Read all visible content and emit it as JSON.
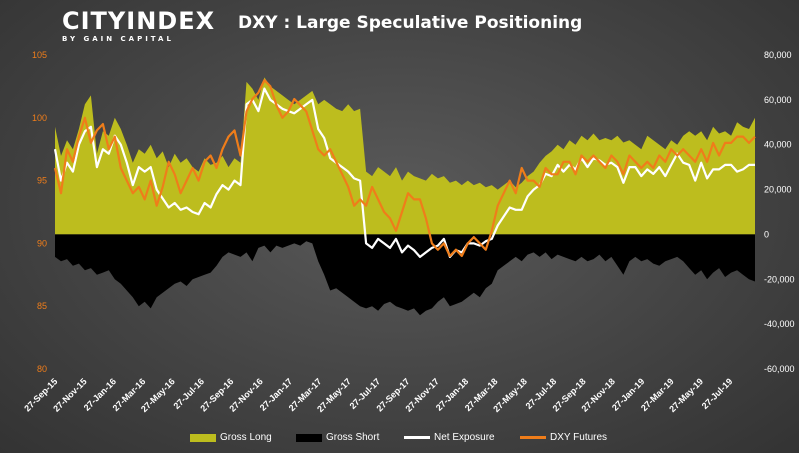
{
  "header": {
    "logo_main": "CITYINDEX",
    "logo_sub": "BY GAIN CAPITAL",
    "title": "DXY : Large Speculative Positioning"
  },
  "colors": {
    "gross_long": "#bdbd1e",
    "gross_short": "#000000",
    "net_exposure": "#ffffff",
    "dxy_futures": "#ef7d1a",
    "left_axis_text": "#ef7d1a",
    "right_axis_text": "#ffffff"
  },
  "chart_data": {
    "type": "area",
    "title": "DXY : Large Speculative Positioning",
    "x_tick_labels": [
      "27-Sep-15",
      "27-Nov-15",
      "27-Jan-16",
      "27-Mar-16",
      "27-May-16",
      "27-Jul-16",
      "27-Sep-16",
      "27-Nov-16",
      "27-Jan-17",
      "27-Mar-17",
      "27-May-17",
      "27-Jul-17",
      "27-Sep-17",
      "27-Nov-17",
      "27-Jan-18",
      "27-Mar-18",
      "27-May-18",
      "27-Jul-18",
      "27-Sep-18",
      "27-Nov-18",
      "27-Jan-19",
      "27-Mar-19",
      "27-May-19",
      "27-Jul-19"
    ],
    "left_axis": {
      "ticks": [
        "105",
        "100",
        "95",
        "90",
        "85",
        "80"
      ],
      "ylim": [
        80,
        105
      ]
    },
    "right_axis": {
      "ticks": [
        "80,000",
        "60,000",
        "40,000",
        "20,000",
        "0",
        "-20,000",
        "-40,000",
        "-60,000"
      ],
      "ylim": [
        -60000,
        80000
      ]
    },
    "grid": false,
    "legend_position": "bottom",
    "series": [
      {
        "name": "Gross Long",
        "axis": "right",
        "style": "area",
        "values": [
          48000,
          35000,
          42000,
          38000,
          47000,
          58000,
          62000,
          36000,
          46000,
          44000,
          52000,
          47000,
          40000,
          32000,
          38000,
          36000,
          40000,
          34000,
          37000,
          30000,
          36000,
          32000,
          34000,
          30000,
          28000,
          34000,
          31000,
          32000,
          35000,
          30000,
          34000,
          32000,
          68000,
          65000,
          60000,
          70000,
          66000,
          64000,
          62000,
          60000,
          58000,
          60000,
          62000,
          64000,
          58000,
          60000,
          58000,
          56000,
          55000,
          58000,
          55000,
          56000,
          28000,
          26000,
          30000,
          28000,
          26000,
          30000,
          24000,
          28000,
          26000,
          25000,
          24000,
          27000,
          25000,
          26000,
          23000,
          24000,
          22000,
          24000,
          22000,
          23000,
          21000,
          22000,
          20000,
          22000,
          24000,
          21000,
          23000,
          26000,
          28000,
          32000,
          35000,
          37000,
          40000,
          38000,
          42000,
          40000,
          44000,
          42000,
          45000,
          42000,
          43000,
          42000,
          44000,
          41000,
          42000,
          40000,
          38000,
          44000,
          42000,
          40000,
          38000,
          42000,
          40000,
          44000,
          46000,
          44000,
          46000,
          42000,
          48000,
          45000,
          46000,
          44000,
          50000,
          48000,
          47000,
          52000
        ]
      },
      {
        "name": "Gross Short",
        "axis": "right",
        "style": "area",
        "values": [
          -10000,
          -12000,
          -11000,
          -14000,
          -13000,
          -16000,
          -15000,
          -18000,
          -17000,
          -16000,
          -20000,
          -22000,
          -25000,
          -28000,
          -32000,
          -30000,
          -33000,
          -28000,
          -26000,
          -24000,
          -22000,
          -21000,
          -23000,
          -20000,
          -19000,
          -18000,
          -17000,
          -14000,
          -10000,
          -8000,
          -9000,
          -10000,
          -8000,
          -12000,
          -6000,
          -5000,
          -8000,
          -5000,
          -6000,
          -5000,
          -4000,
          -5000,
          -3000,
          -4000,
          -12000,
          -18000,
          -25000,
          -24000,
          -26000,
          -28000,
          -30000,
          -32000,
          -33000,
          -32000,
          -34000,
          -31000,
          -30000,
          -32000,
          -33000,
          -34000,
          -33000,
          -36000,
          -34000,
          -33000,
          -30000,
          -28000,
          -32000,
          -31000,
          -30000,
          -28000,
          -26000,
          -28000,
          -24000,
          -22000,
          -16000,
          -14000,
          -12000,
          -10000,
          -12000,
          -9000,
          -8000,
          -10000,
          -8000,
          -11000,
          -9000,
          -10000,
          -11000,
          -12000,
          -10000,
          -12000,
          -11000,
          -9000,
          -12000,
          -10000,
          -14000,
          -18000,
          -12000,
          -10000,
          -12000,
          -11000,
          -13000,
          -14000,
          -12000,
          -11000,
          -10000,
          -12000,
          -15000,
          -18000,
          -16000,
          -20000,
          -17000,
          -15000,
          -19000,
          -17000,
          -16000,
          -18000,
          -20000,
          -21000
        ]
      },
      {
        "name": "Net Exposure",
        "axis": "right",
        "style": "line",
        "values": [
          38000,
          24000,
          32000,
          28000,
          40000,
          46000,
          48000,
          30000,
          38000,
          36000,
          44000,
          40000,
          32000,
          22000,
          30000,
          28000,
          30000,
          20000,
          16000,
          12000,
          14000,
          11000,
          12000,
          10000,
          9000,
          14000,
          12000,
          18000,
          22000,
          20000,
          24000,
          22000,
          58000,
          60000,
          55000,
          65000,
          60000,
          58000,
          56000,
          55000,
          54000,
          56000,
          58000,
          60000,
          47000,
          43000,
          34000,
          32000,
          30000,
          28000,
          25000,
          24000,
          -4000,
          -6000,
          -2000,
          -4000,
          -6000,
          -2000,
          -8000,
          -5000,
          -7000,
          -10000,
          -8000,
          -6000,
          -5000,
          -2000,
          -10000,
          -7000,
          -8000,
          -4000,
          -4000,
          -5000,
          -3000,
          -2000,
          4000,
          8000,
          12000,
          11000,
          11000,
          17000,
          20000,
          22000,
          27000,
          26000,
          31000,
          28000,
          31000,
          29000,
          34000,
          30000,
          34000,
          33000,
          31000,
          32000,
          30000,
          23000,
          30000,
          30000,
          26000,
          29000,
          27000,
          30000,
          26000,
          31000,
          36000,
          32000,
          31000,
          24000,
          32000,
          25000,
          29000,
          29000,
          31000,
          31000,
          28000,
          29000,
          31000,
          31000
        ]
      },
      {
        "name": "DXY Futures",
        "axis": "left",
        "style": "line",
        "values": [
          96.0,
          94.0,
          97.5,
          96.5,
          98.5,
          100.0,
          98.0,
          99.0,
          99.5,
          97.5,
          98.5,
          96.0,
          95.0,
          94.0,
          94.5,
          93.5,
          95.0,
          93.0,
          94.5,
          96.5,
          95.5,
          94.0,
          95.0,
          96.0,
          95.0,
          96.5,
          97.0,
          96.0,
          97.5,
          98.5,
          99.0,
          97.0,
          100.5,
          101.5,
          102.0,
          103.0,
          102.5,
          101.0,
          100.0,
          100.5,
          101.5,
          101.0,
          100.5,
          99.0,
          97.5,
          97.0,
          97.5,
          96.5,
          95.5,
          94.5,
          93.0,
          93.5,
          93.0,
          94.5,
          93.5,
          92.5,
          92.0,
          91.0,
          92.5,
          94.0,
          93.5,
          93.5,
          92.0,
          90.0,
          89.5,
          90.0,
          89.0,
          89.5,
          89.0,
          90.0,
          90.5,
          90.0,
          89.5,
          91.0,
          93.0,
          94.0,
          95.0,
          94.0,
          96.0,
          95.0,
          95.0,
          94.5,
          96.0,
          95.5,
          95.5,
          96.5,
          96.5,
          95.5,
          97.0,
          96.5,
          97.0,
          96.5,
          96.0,
          97.0,
          96.5,
          95.5,
          97.0,
          96.5,
          96.0,
          96.5,
          96.0,
          97.0,
          96.5,
          97.5,
          97.0,
          97.5,
          97.0,
          96.5,
          97.5,
          96.5,
          98.0,
          97.0,
          98.0,
          98.0,
          98.5,
          98.5,
          98.0,
          98.5
        ]
      }
    ]
  },
  "legend": {
    "gross_long": "Gross Long",
    "gross_short": "Gross Short",
    "net_exposure": "Net Exposure",
    "dxy_futures": "DXY Futures"
  }
}
